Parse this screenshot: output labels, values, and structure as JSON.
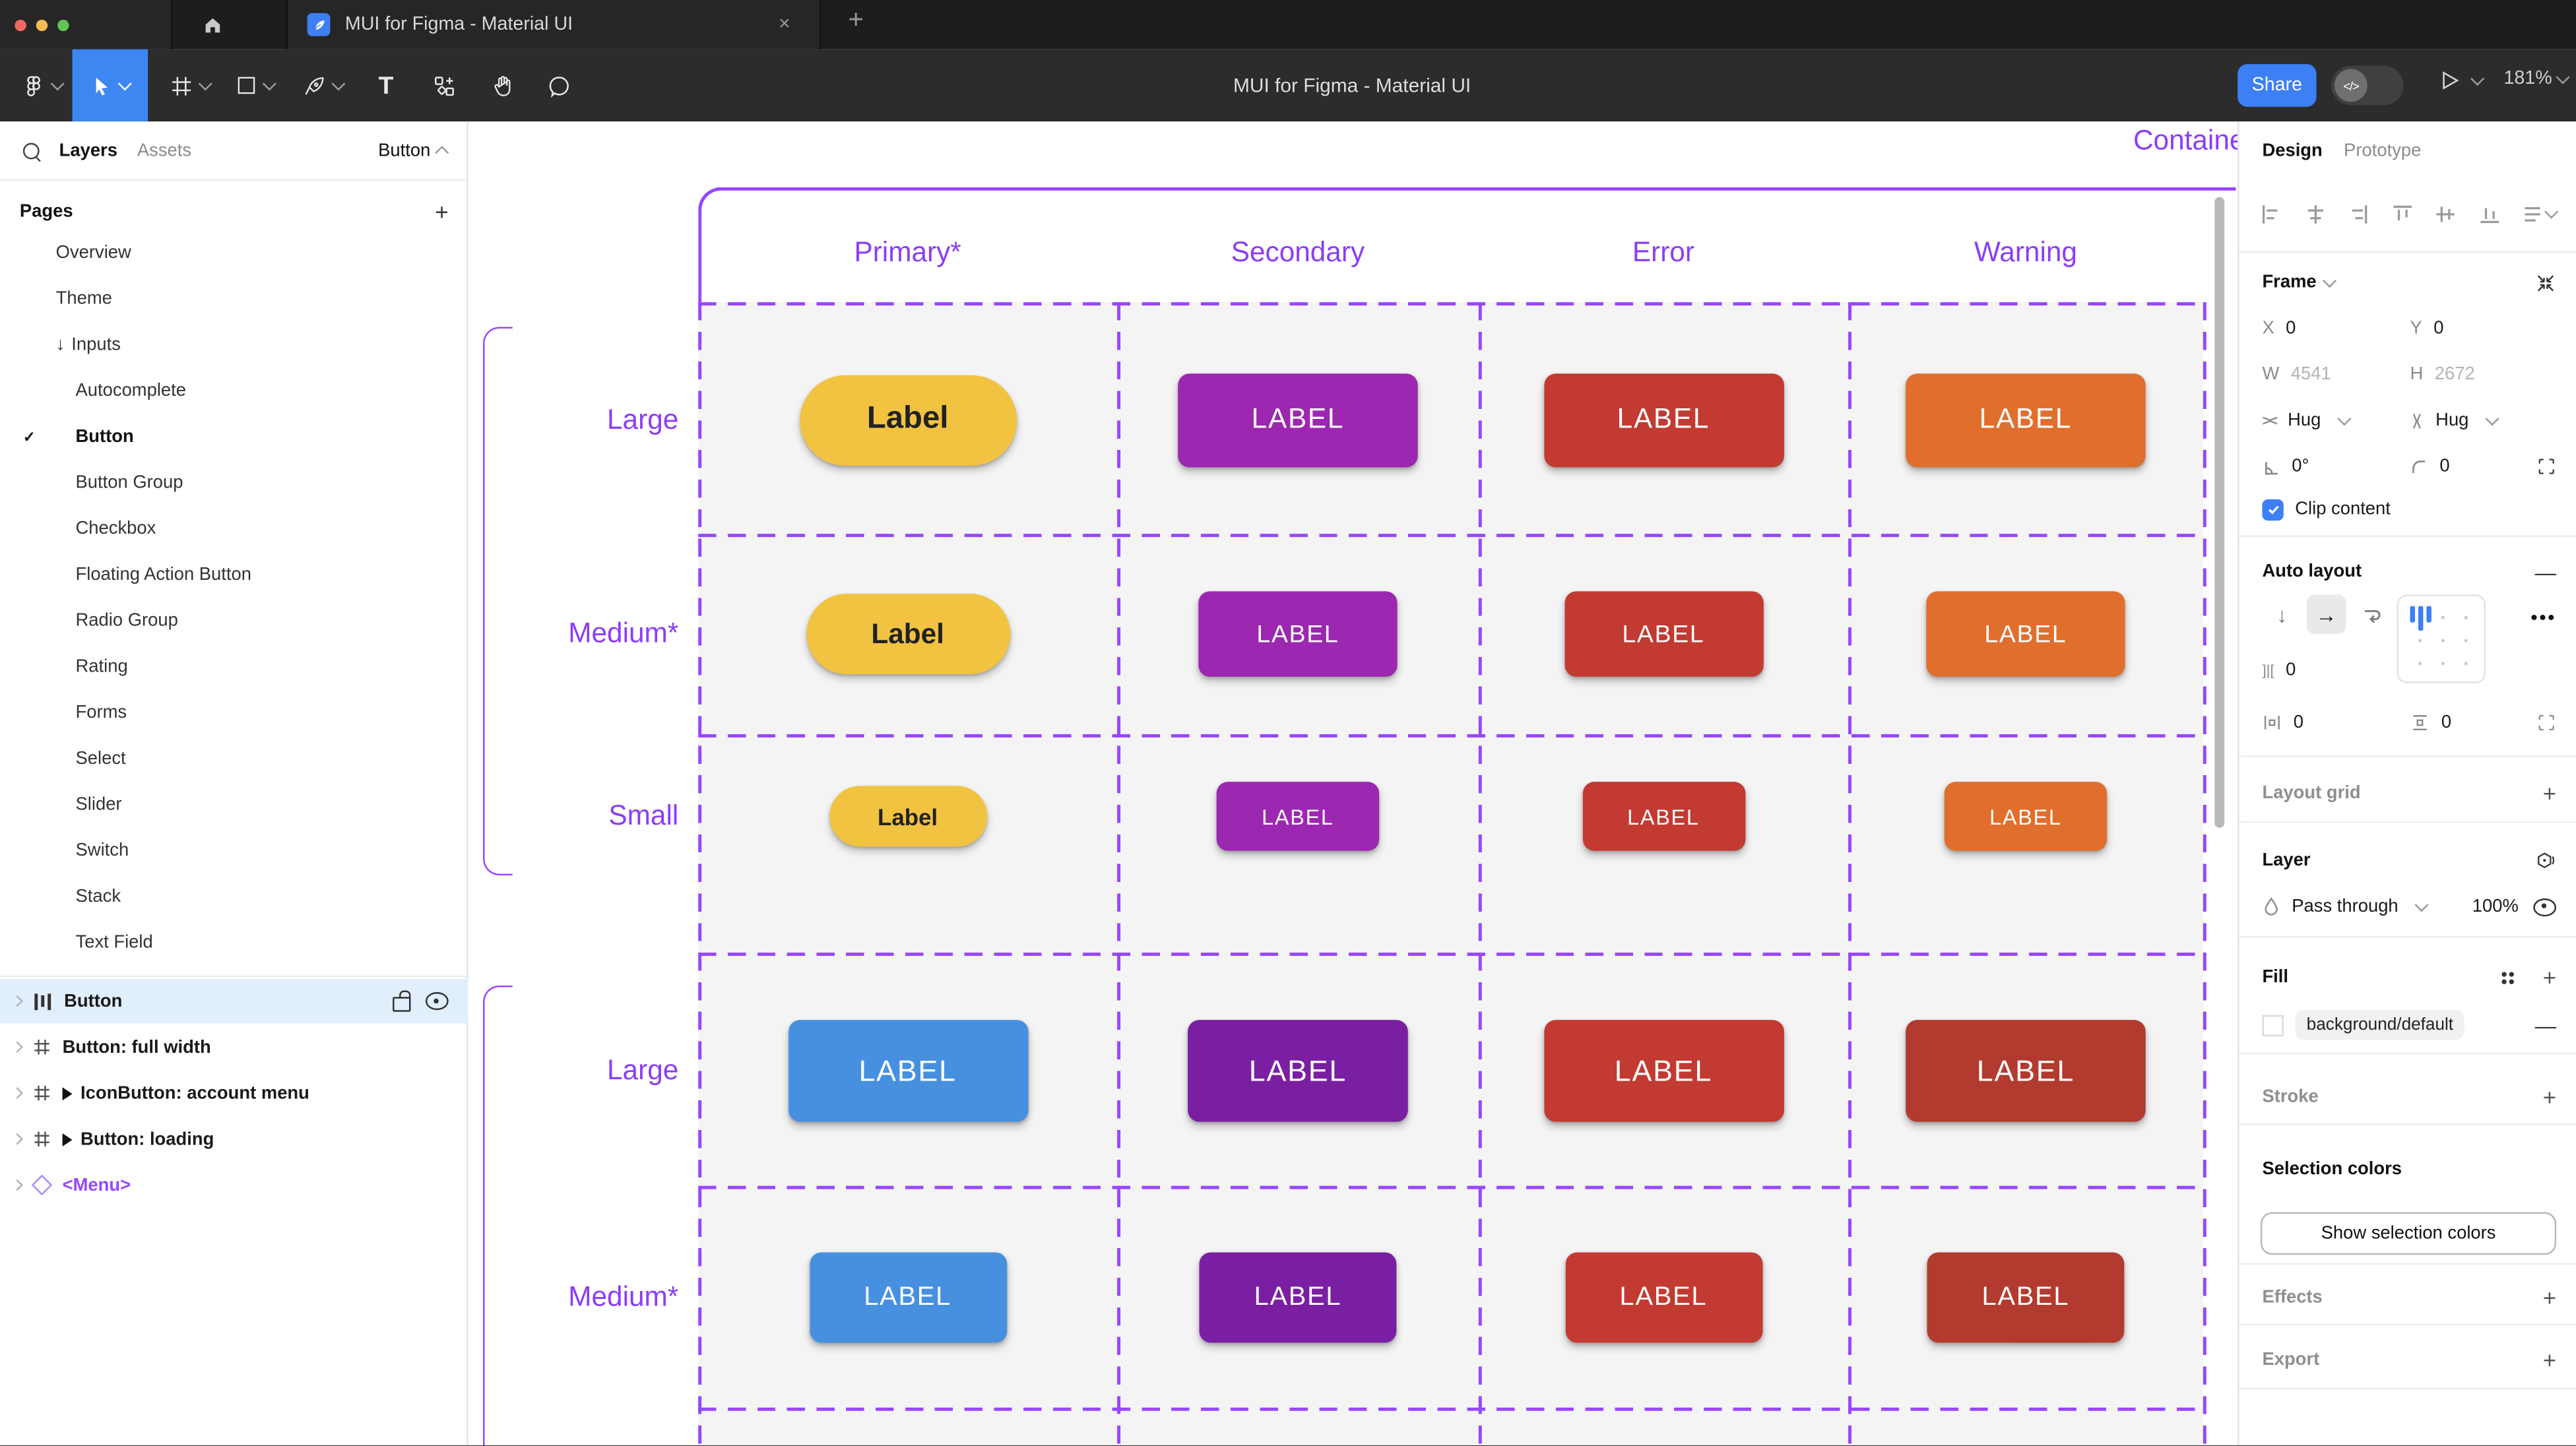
{
  "window": {
    "traffic_lights": [
      "#EE6A5F",
      "#F5BD4F",
      "#61C454"
    ],
    "tab_title": "MUI for Figma - Material UI",
    "tab_close_glyph": "×",
    "new_tab_glyph": "+",
    "toolbar_title": "MUI for Figma - Material UI",
    "share_label": "Share",
    "dev_toggle_glyph": "</>",
    "zoom_level": "181%",
    "tools": [
      "figma-menu",
      "move",
      "frame",
      "shape",
      "pen",
      "text",
      "components",
      "hand",
      "comment"
    ]
  },
  "left_sidebar": {
    "tabs": [
      {
        "label": "Layers"
      },
      {
        "label": "Assets"
      }
    ],
    "filter_label": "Button",
    "pages_header": "Pages",
    "pages_add_glyph": "+",
    "pages": [
      {
        "label": "Overview",
        "indent": 1
      },
      {
        "label": "Theme",
        "indent": 1
      },
      {
        "label": "Inputs",
        "indent": 1,
        "prefix": "↓"
      },
      {
        "label": "Autocomplete",
        "indent": 2
      },
      {
        "label": "Button",
        "indent": 2,
        "checked": true,
        "bold": true
      },
      {
        "label": "Button Group",
        "indent": 2
      },
      {
        "label": "Checkbox",
        "indent": 2
      },
      {
        "label": "Floating Action Button",
        "indent": 2
      },
      {
        "label": "Radio Group",
        "indent": 2
      },
      {
        "label": "Rating",
        "indent": 2
      },
      {
        "label": "Forms",
        "indent": 2
      },
      {
        "label": "Select",
        "indent": 2
      },
      {
        "label": "Slider",
        "indent": 2
      },
      {
        "label": "Switch",
        "indent": 2
      },
      {
        "label": "Stack",
        "indent": 2
      },
      {
        "label": "Text Field",
        "indent": 2
      }
    ],
    "layers": [
      {
        "label": "Button",
        "icon": "auto-layout",
        "selected": true
      },
      {
        "label": "Button: full width",
        "icon": "frame"
      },
      {
        "label": "IconButton: account menu",
        "icon": "frame",
        "play": true
      },
      {
        "label": "Button: loading",
        "icon": "frame",
        "play": true
      },
      {
        "label": "<Menu>",
        "icon": "component",
        "purple": true
      }
    ]
  },
  "canvas": {
    "frame_title": "Contained",
    "column_headers": [
      "Primary*",
      "Secondary",
      "Error",
      "Warning"
    ],
    "rows": [
      {
        "label": "Large",
        "buttons": [
          {
            "text": "Label",
            "variant": "warning_text"
          },
          {
            "text": "LABEL",
            "variant": "secondary"
          },
          {
            "text": "LABEL",
            "variant": "error"
          },
          {
            "text": "LABEL",
            "variant": "warning"
          }
        ]
      },
      {
        "label": "Medium*",
        "buttons": [
          {
            "text": "Label",
            "variant": "warning_text"
          },
          {
            "text": "LABEL",
            "variant": "secondary"
          },
          {
            "text": "LABEL",
            "variant": "error"
          },
          {
            "text": "LABEL",
            "variant": "warning"
          }
        ]
      },
      {
        "label": "Small",
        "buttons": [
          {
            "text": "Label",
            "variant": "warning_text"
          },
          {
            "text": "LABEL",
            "variant": "secondary"
          },
          {
            "text": "LABEL",
            "variant": "error"
          },
          {
            "text": "LABEL",
            "variant": "warning"
          }
        ]
      },
      {
        "label": "Large",
        "buttons": [
          {
            "text": "LABEL",
            "variant": "primary"
          },
          {
            "text": "LABEL",
            "variant": "secondary_dark"
          },
          {
            "text": "LABEL",
            "variant": "error"
          },
          {
            "text": "LABEL",
            "variant": "error_dark"
          }
        ]
      },
      {
        "label": "Medium*",
        "buttons": [
          {
            "text": "LABEL",
            "variant": "primary"
          },
          {
            "text": "LABEL",
            "variant": "secondary_dark"
          },
          {
            "text": "LABEL",
            "variant": "error"
          },
          {
            "text": "LABEL",
            "variant": "error_dark"
          }
        ]
      }
    ]
  },
  "right_panel": {
    "tabs": [
      {
        "label": "Design"
      },
      {
        "label": "Prototype"
      }
    ],
    "frame_section": {
      "title": "Frame",
      "x_label": "X",
      "x_value": "0",
      "y_label": "Y",
      "y_value": "0",
      "w_label": "W",
      "w_value": "4541",
      "h_label": "H",
      "h_value": "2672",
      "hug_h": "Hug",
      "hug_v": "Hug",
      "rotation": "0°",
      "corner_radius": "0",
      "clip_label": "Clip content"
    },
    "auto_layout": {
      "title": "Auto layout",
      "remove_glyph": "—",
      "gap_value": "0",
      "padding_h_value": "0",
      "padding_v_value": "0"
    },
    "layout_grid": {
      "title": "Layout grid",
      "add_glyph": "+"
    },
    "layer_section": {
      "title": "Layer",
      "blend_mode": "Pass through",
      "opacity": "100%"
    },
    "fill_section": {
      "title": "Fill",
      "token": "background/default",
      "remove_glyph": "—",
      "add_glyph": "+"
    },
    "stroke_section": {
      "title": "Stroke",
      "add_glyph": "+"
    },
    "selection_colors": {
      "title": "Selection colors",
      "button_label": "Show selection colors"
    },
    "effects_section": {
      "title": "Effects",
      "add_glyph": "+"
    },
    "export_section": {
      "title": "Export",
      "add_glyph": "+"
    }
  },
  "colors": {
    "accent_blue": "#3D7FF5",
    "figma_purple": "#9747FF",
    "canvas_text_purple": "#8B3DF6",
    "cell_background": "#F4F4F4",
    "button_variants": {
      "warning_text": {
        "bg": "#F1C340",
        "fg": "#222222",
        "shape": "pill"
      },
      "secondary": {
        "bg": "#9C27B0",
        "fg": "#FFFFFF"
      },
      "error": {
        "bg": "#C23A31",
        "fg": "#FFFFFF"
      },
      "warning": {
        "bg": "#E06F2D",
        "fg": "#FFFFFF"
      },
      "primary": {
        "bg": "#4790E0",
        "fg": "#FFFFFF"
      },
      "secondary_dark": {
        "bg": "#7A1FA2",
        "fg": "#FFFFFF"
      },
      "error_dark": {
        "bg": "#B23A2E",
        "fg": "#FFFFFF"
      }
    }
  }
}
